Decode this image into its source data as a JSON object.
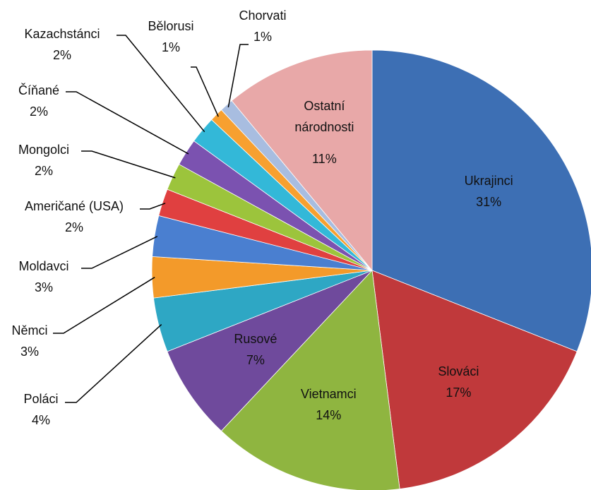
{
  "chart_data": {
    "type": "pie",
    "categories": [
      "Ukrajinci",
      "Slováci",
      "Vietnamci",
      "Rusové",
      "Poláci",
      "Němci",
      "Moldavci",
      "Američané (USA)",
      "Mongolci",
      "Číňané",
      "Kazachstánci",
      "Bělorusi",
      "Chorvati",
      "Ostatní národnosti"
    ],
    "values": [
      31,
      17,
      14,
      7,
      4,
      3,
      3,
      2,
      2,
      2,
      2,
      1,
      1,
      11
    ],
    "value_labels": [
      "31%",
      "17%",
      "14%",
      "7%",
      "4%",
      "3%",
      "3%",
      "2%",
      "2%",
      "2%",
      "2%",
      "1%",
      "1%",
      "11%"
    ],
    "colors": [
      "#3d6fb4",
      "#c0393b",
      "#8fb540",
      "#6f4a9c",
      "#2ea7c4",
      "#f39a2a",
      "#4a7fd0",
      "#e04040",
      "#9cc43c",
      "#7b52b0",
      "#33b8d8",
      "#f7a030",
      "#a8bde0",
      "#e8a8a8"
    ]
  }
}
